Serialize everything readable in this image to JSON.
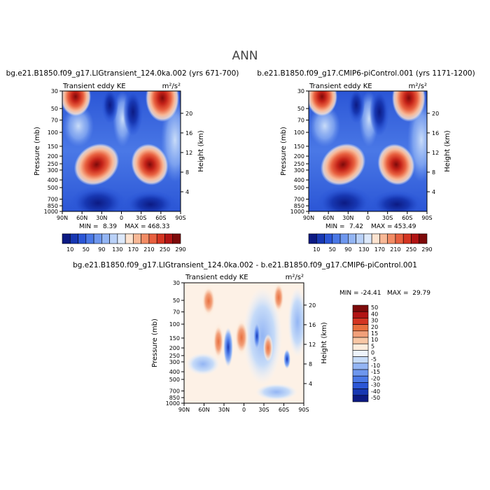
{
  "figure": {
    "title": "ANN",
    "left_title": "bg.e21.B1850.f09_g17.LIGtransient_124.0ka.002 (yrs 671-700)",
    "right_title": "b.e21.B1850.f09_g17.CMIP6-piControl.001 (yrs 1171-1200)",
    "diff_title": "bg.e21.B1850.f09_g17.LIGtransient_124.0ka.002 - b.e21.B1850.f09_g17.CMIP6-piControl.001"
  },
  "colors": {
    "main_scale": [
      "#0c1a83",
      "#1737b2",
      "#2b56d6",
      "#4a78e6",
      "#6e97ee",
      "#93b5f4",
      "#b9d1f8",
      "#dde9fb",
      "#fde3d0",
      "#f8b896",
      "#f28c65",
      "#e8603f",
      "#d43522",
      "#b11414",
      "#7d0a0a"
    ],
    "diff_scale": [
      "#0c1a83",
      "#1737b2",
      "#2b56d6",
      "#4a78e6",
      "#6e97ee",
      "#93b5f4",
      "#c6dbf8",
      "#eef4fc",
      "#fdecdc",
      "#f8c7a5",
      "#f2a07a",
      "#e8703f",
      "#d43522",
      "#b11414",
      "#7d0a0a"
    ]
  },
  "chart_data": [
    {
      "type": "heatmap",
      "panel": "left",
      "title": "bg.e21.B1850.f09_g17.LIGtransient_124.0ka.002 (yrs 671-700)",
      "left_label": "Transient eddy KE",
      "units": "m²/s²",
      "xlabel": "",
      "ylabel": "Pressure (mb)",
      "y2label": "Height (km)",
      "x_ticks": [
        "90N",
        "60N",
        "30N",
        "0",
        "30S",
        "60S",
        "90S"
      ],
      "y_ticks": [
        "30",
        "50",
        "70",
        "100",
        "150",
        "200",
        "250",
        "300",
        "400",
        "500",
        "700",
        "850",
        "1000"
      ],
      "y2_ticks": [
        "20",
        "16",
        "12",
        "8",
        "4"
      ],
      "min": 8.39,
      "max": 468.33,
      "min_label": "MIN =",
      "min_value": "8.39",
      "max_label": "MAX =",
      "max_value": "468.33",
      "colorbar_labels": [
        "10",
        "50",
        "90",
        "130",
        "170",
        "210",
        "250",
        "290"
      ]
    },
    {
      "type": "heatmap",
      "panel": "right",
      "title": "b.e21.B1850.f09_g17.CMIP6-piControl.001 (yrs 1171-1200)",
      "left_label": "Transient eddy KE",
      "units": "m²/s²",
      "xlabel": "",
      "ylabel": "Pressure (mb)",
      "y2label": "Height (km)",
      "x_ticks": [
        "90N",
        "60N",
        "30N",
        "0",
        "30S",
        "60S",
        "90S"
      ],
      "y_ticks": [
        "30",
        "50",
        "70",
        "100",
        "150",
        "200",
        "250",
        "300",
        "400",
        "500",
        "700",
        "850",
        "1000"
      ],
      "y2_ticks": [
        "20",
        "16",
        "12",
        "8",
        "4"
      ],
      "min": 7.42,
      "max": 453.49,
      "min_label": "MIN =",
      "min_value": "7.42",
      "max_label": "MAX =",
      "max_value": "453.49",
      "colorbar_labels": [
        "10",
        "50",
        "90",
        "130",
        "170",
        "210",
        "250",
        "290"
      ]
    },
    {
      "type": "heatmap",
      "panel": "difference",
      "title": "bg.e21.B1850.f09_g17.LIGtransient_124.0ka.002 - b.e21.B1850.f09_g17.CMIP6-piControl.001",
      "left_label": "Transient eddy KE",
      "units": "m²/s²",
      "xlabel": "",
      "ylabel": "Pressure (mb)",
      "y2label": "Height (km)",
      "x_ticks": [
        "90N",
        "60N",
        "30N",
        "0",
        "30S",
        "60S",
        "90S"
      ],
      "y_ticks": [
        "30",
        "50",
        "70",
        "100",
        "150",
        "200",
        "250",
        "300",
        "400",
        "500",
        "700",
        "850",
        "1000"
      ],
      "y2_ticks": [
        "20",
        "16",
        "12",
        "8",
        "4"
      ],
      "min": -24.41,
      "max": 29.79,
      "minmax_text": "MIN = -24.41   MAX =  29.79",
      "colorbar_labels": [
        "50",
        "40",
        "30",
        "20",
        "15",
        "10",
        "5",
        "0",
        "-5",
        "-10",
        "-15",
        "-20",
        "-30",
        "-40",
        "-50"
      ]
    }
  ]
}
